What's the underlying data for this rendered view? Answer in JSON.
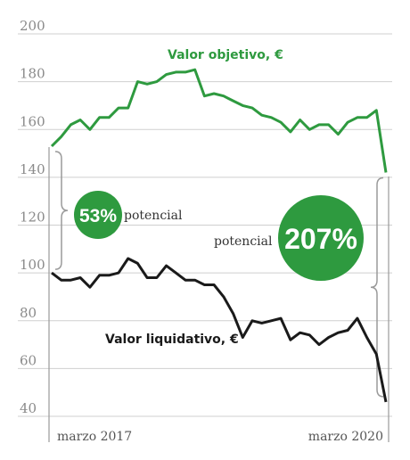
{
  "colors": {
    "objective": "#2e9a3f",
    "liquidative": "#1a1a1a",
    "bubble": "#2e9a3f",
    "bracket": "#9a9a9a",
    "grid": "#cfcfcf"
  },
  "chart_data": {
    "type": "line",
    "ylim": [
      40,
      200
    ],
    "yticks": [
      "200",
      "180",
      "160",
      "140",
      "120",
      "100",
      "80",
      "60",
      "40"
    ],
    "x_start_label": "marzo 2017",
    "x_end_label": "marzo 2020",
    "grid": true,
    "series": [
      {
        "name": "Valor objetivo, €",
        "values": [
          153,
          157,
          162,
          164,
          160,
          165,
          165,
          169,
          169,
          180,
          179,
          180,
          183,
          184,
          184,
          185,
          174,
          175,
          174,
          172,
          170,
          169,
          166,
          165,
          163,
          159,
          164,
          160,
          162,
          162,
          158,
          163,
          165,
          165,
          168,
          142
        ]
      },
      {
        "name": "Valor liquidativo, €",
        "values": [
          100,
          97,
          97,
          98,
          94,
          99,
          99,
          100,
          106,
          104,
          98,
          98,
          103,
          100,
          97,
          97,
          95,
          95,
          90,
          83,
          73,
          80,
          79,
          80,
          81,
          72,
          75,
          74,
          70,
          73,
          75,
          76,
          81,
          73,
          66,
          46
        ]
      }
    ],
    "annotations": {
      "start_potential": {
        "value": "53%",
        "word": "potencial"
      },
      "end_potential": {
        "value": "207%",
        "word": "potencial"
      }
    }
  }
}
